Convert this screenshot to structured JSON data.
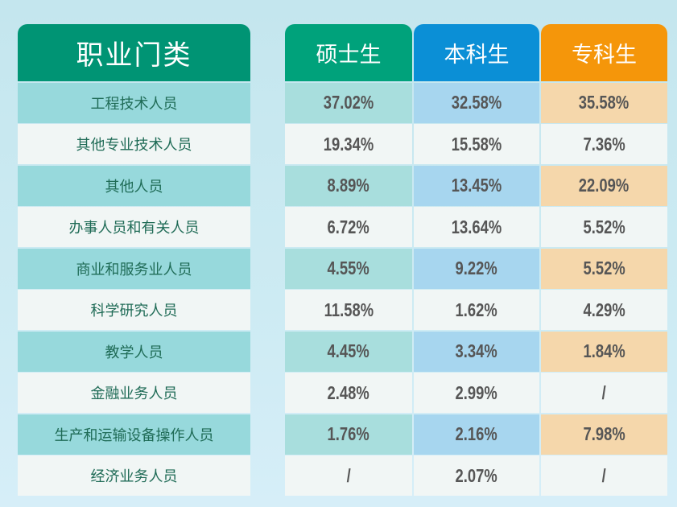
{
  "header": {
    "category": "职业门类",
    "columns": [
      "硕士生",
      "本科生",
      "专科生"
    ]
  },
  "colors": {
    "master": "#00a27b",
    "bachelor": "#0b8fd6",
    "college": "#f5960a",
    "category": "#009474"
  },
  "rows": [
    {
      "name": "工程技术人员",
      "values": [
        "37.02%",
        "32.58%",
        "35.58%"
      ]
    },
    {
      "name": "其他专业技术人员",
      "values": [
        "19.34%",
        "15.58%",
        "7.36%"
      ]
    },
    {
      "name": "其他人员",
      "values": [
        "8.89%",
        "13.45%",
        "22.09%"
      ]
    },
    {
      "name": "办事人员和有关人员",
      "values": [
        "6.72%",
        "13.64%",
        "5.52%"
      ]
    },
    {
      "name": "商业和服务业人员",
      "values": [
        "4.55%",
        "9.22%",
        "5.52%"
      ]
    },
    {
      "name": "科学研究人员",
      "values": [
        "11.58%",
        "1.62%",
        "4.29%"
      ]
    },
    {
      "name": "教学人员",
      "values": [
        "4.45%",
        "3.34%",
        "1.84%"
      ]
    },
    {
      "name": "金融业务人员",
      "values": [
        "2.48%",
        "2.99%",
        "/"
      ]
    },
    {
      "name": "生产和运输设备操作人员",
      "values": [
        "1.76%",
        "2.16%",
        "7.98%"
      ]
    },
    {
      "name": "经济业务人员",
      "values": [
        "/",
        "2.07%",
        "/"
      ]
    }
  ]
}
